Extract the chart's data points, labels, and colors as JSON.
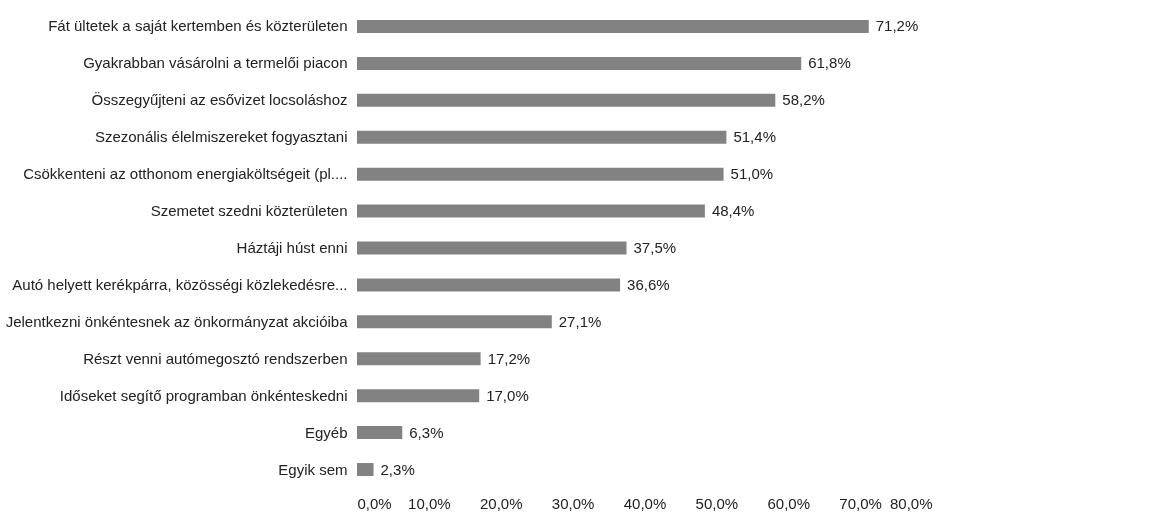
{
  "chart_data": {
    "type": "bar",
    "orientation": "horizontal",
    "categories": [
      "Fát ültetek a saját kertemben és közterületen",
      "Gyakrabban vásárolni a termelői piacon",
      "Összegyűjteni az esővizet locsoláshoz",
      "Szezonális élelmiszereket fogyasztani",
      "Csökkenteni az otthonom energiaköltségeit (pl....",
      "Szemetet szedni közterületen",
      "Háztáji húst enni",
      "Autó helyett kerékpárra, közösségi közlekedésre...",
      "Jelentkezni önkéntesnek az önkormányzat akcióiba",
      "Részt venni autómegosztó rendszerben",
      "Időseket segítő programban önkénteskedni",
      "Egyéb",
      "Egyik sem"
    ],
    "values": [
      71.2,
      61.8,
      58.2,
      51.4,
      51.0,
      48.4,
      37.5,
      36.6,
      27.1,
      17.2,
      17.0,
      6.3,
      2.3
    ],
    "value_labels": [
      "71,2%",
      "61,8%",
      "58,2%",
      "51,4%",
      "51,0%",
      "48,4%",
      "37,5%",
      "36,6%",
      "27,1%",
      "17,2%",
      "17,0%",
      "6,3%",
      "2,3%"
    ],
    "color": "#828282",
    "xlim": [
      0,
      80
    ],
    "xticks": [
      {
        "value": 0,
        "label": "0,0%"
      },
      {
        "value": 10,
        "label": "10,0%"
      },
      {
        "value": 20,
        "label": "20,0%"
      },
      {
        "value": 30,
        "label": "30,0%"
      },
      {
        "value": 40,
        "label": "40,0%"
      },
      {
        "value": 50,
        "label": "50,0%"
      },
      {
        "value": 60,
        "label": "60,0%"
      },
      {
        "value": 70,
        "label": "70,0%"
      },
      {
        "value": 80,
        "label": "80,0%"
      }
    ],
    "grid": false
  }
}
